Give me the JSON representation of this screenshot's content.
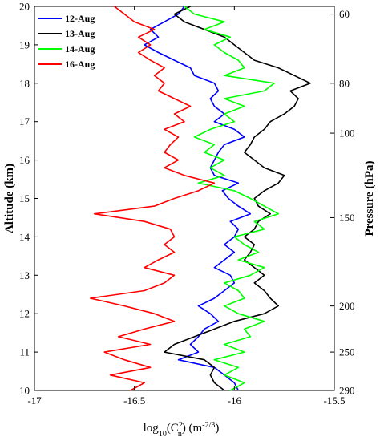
{
  "chart_data": {
    "type": "line",
    "orientation": "vertical-profile",
    "xlabel_base": "log",
    "xlabel_sub1": "10",
    "xlabel_mid": "(C",
    "xlabel_sup": "2",
    "xlabel_sub2": "n",
    "xlabel_tail": ") (m",
    "xlabel_exp": "-2/3",
    "xlabel_end": ")",
    "ylabel": "Altitude (km)",
    "y2label": "Pressure (hPa)",
    "xlim": [
      -17,
      -15.5
    ],
    "ylim": [
      10,
      20
    ],
    "x_ticks": [
      -17,
      -16.5,
      -16,
      -15.5
    ],
    "y_ticks": [
      10,
      11,
      12,
      13,
      14,
      15,
      16,
      17,
      18,
      19,
      20
    ],
    "y2_ticks": [
      {
        "label": "60",
        "altitude": 19.8
      },
      {
        "label": "80",
        "altitude": 18.0
      },
      {
        "label": "100",
        "altitude": 16.7
      },
      {
        "label": "150",
        "altitude": 14.5
      },
      {
        "label": "200",
        "altitude": 12.2
      },
      {
        "label": "250",
        "altitude": 11.0
      },
      {
        "label": "290",
        "altitude": 10.0
      }
    ],
    "legend_position": "top-left",
    "series": [
      {
        "name": "12-Aug",
        "color": "#0000ff",
        "points": [
          [
            -15.98,
            10.0
          ],
          [
            -16.0,
            10.2
          ],
          [
            -16.05,
            10.4
          ],
          [
            -16.1,
            10.6
          ],
          [
            -16.28,
            10.8
          ],
          [
            -16.18,
            11.0
          ],
          [
            -16.22,
            11.2
          ],
          [
            -16.18,
            11.4
          ],
          [
            -16.15,
            11.6
          ],
          [
            -16.08,
            11.8
          ],
          [
            -16.12,
            12.0
          ],
          [
            -16.18,
            12.2
          ],
          [
            -16.1,
            12.4
          ],
          [
            -16.05,
            12.6
          ],
          [
            -16.0,
            12.8
          ],
          [
            -16.02,
            13.0
          ],
          [
            -16.1,
            13.2
          ],
          [
            -16.05,
            13.4
          ],
          [
            -16.0,
            13.6
          ],
          [
            -16.05,
            13.8
          ],
          [
            -16.0,
            14.0
          ],
          [
            -15.98,
            14.2
          ],
          [
            -16.02,
            14.4
          ],
          [
            -15.92,
            14.6
          ],
          [
            -15.98,
            14.8
          ],
          [
            -16.03,
            15.0
          ],
          [
            -16.06,
            15.2
          ],
          [
            -15.98,
            15.4
          ],
          [
            -16.1,
            15.6
          ],
          [
            -16.12,
            15.8
          ],
          [
            -16.1,
            16.0
          ],
          [
            -16.08,
            16.2
          ],
          [
            -16.05,
            16.4
          ],
          [
            -15.95,
            16.6
          ],
          [
            -16.0,
            16.8
          ],
          [
            -16.1,
            17.0
          ],
          [
            -16.05,
            17.2
          ],
          [
            -16.1,
            17.4
          ],
          [
            -16.12,
            17.6
          ],
          [
            -16.08,
            17.8
          ],
          [
            -16.1,
            18.0
          ],
          [
            -16.2,
            18.2
          ],
          [
            -16.22,
            18.4
          ],
          [
            -16.3,
            18.6
          ],
          [
            -16.38,
            18.8
          ],
          [
            -16.45,
            19.0
          ],
          [
            -16.38,
            19.2
          ],
          [
            -16.42,
            19.4
          ],
          [
            -16.35,
            19.6
          ],
          [
            -16.28,
            19.8
          ],
          [
            -16.25,
            20.0
          ]
        ]
      },
      {
        "name": "13-Aug",
        "color": "#000000",
        "points": [
          [
            -16.05,
            10.0
          ],
          [
            -16.1,
            10.2
          ],
          [
            -16.12,
            10.4
          ],
          [
            -16.1,
            10.6
          ],
          [
            -16.15,
            10.8
          ],
          [
            -16.35,
            11.0
          ],
          [
            -16.3,
            11.2
          ],
          [
            -16.2,
            11.4
          ],
          [
            -16.1,
            11.6
          ],
          [
            -16.0,
            11.8
          ],
          [
            -15.85,
            12.0
          ],
          [
            -15.78,
            12.2
          ],
          [
            -15.82,
            12.4
          ],
          [
            -15.85,
            12.6
          ],
          [
            -15.9,
            12.8
          ],
          [
            -15.85,
            13.0
          ],
          [
            -15.9,
            13.2
          ],
          [
            -15.95,
            13.4
          ],
          [
            -15.92,
            13.6
          ],
          [
            -15.9,
            13.8
          ],
          [
            -15.95,
            14.0
          ],
          [
            -15.9,
            14.2
          ],
          [
            -15.88,
            14.4
          ],
          [
            -15.82,
            14.6
          ],
          [
            -15.88,
            14.8
          ],
          [
            -15.9,
            15.0
          ],
          [
            -15.85,
            15.2
          ],
          [
            -15.78,
            15.4
          ],
          [
            -15.75,
            15.6
          ],
          [
            -15.85,
            15.8
          ],
          [
            -15.9,
            16.0
          ],
          [
            -15.95,
            16.2
          ],
          [
            -15.92,
            16.4
          ],
          [
            -15.9,
            16.6
          ],
          [
            -15.85,
            16.8
          ],
          [
            -15.82,
            17.0
          ],
          [
            -15.75,
            17.2
          ],
          [
            -15.7,
            17.4
          ],
          [
            -15.68,
            17.6
          ],
          [
            -15.72,
            17.8
          ],
          [
            -15.62,
            18.0
          ],
          [
            -15.7,
            18.2
          ],
          [
            -15.78,
            18.4
          ],
          [
            -15.9,
            18.6
          ],
          [
            -15.95,
            18.8
          ],
          [
            -16.0,
            19.0
          ],
          [
            -16.05,
            19.2
          ],
          [
            -16.15,
            19.4
          ],
          [
            -16.25,
            19.6
          ],
          [
            -16.3,
            19.8
          ],
          [
            -16.22,
            20.0
          ]
        ]
      },
      {
        "name": "14-Aug",
        "color": "#00ff00",
        "points": [
          [
            -16.02,
            10.0
          ],
          [
            -15.95,
            10.2
          ],
          [
            -16.05,
            10.4
          ],
          [
            -15.98,
            10.6
          ],
          [
            -16.1,
            10.8
          ],
          [
            -15.95,
            11.0
          ],
          [
            -16.05,
            11.2
          ],
          [
            -15.92,
            11.4
          ],
          [
            -15.95,
            11.6
          ],
          [
            -15.85,
            11.8
          ],
          [
            -15.98,
            12.0
          ],
          [
            -16.05,
            12.2
          ],
          [
            -15.95,
            12.4
          ],
          [
            -15.98,
            12.6
          ],
          [
            -16.05,
            12.8
          ],
          [
            -15.92,
            13.0
          ],
          [
            -15.85,
            13.2
          ],
          [
            -15.98,
            13.4
          ],
          [
            -15.88,
            13.6
          ],
          [
            -15.95,
            13.8
          ],
          [
            -16.0,
            14.0
          ],
          [
            -15.85,
            14.2
          ],
          [
            -15.9,
            14.4
          ],
          [
            -15.78,
            14.6
          ],
          [
            -15.85,
            14.8
          ],
          [
            -15.92,
            15.0
          ],
          [
            -16.0,
            15.2
          ],
          [
            -16.18,
            15.4
          ],
          [
            -16.05,
            15.6
          ],
          [
            -16.12,
            15.8
          ],
          [
            -16.05,
            16.0
          ],
          [
            -16.15,
            16.2
          ],
          [
            -16.1,
            16.4
          ],
          [
            -16.2,
            16.6
          ],
          [
            -16.12,
            16.8
          ],
          [
            -16.0,
            17.0
          ],
          [
            -16.05,
            17.2
          ],
          [
            -15.95,
            17.4
          ],
          [
            -16.05,
            17.6
          ],
          [
            -15.85,
            17.8
          ],
          [
            -15.8,
            18.0
          ],
          [
            -16.05,
            18.2
          ],
          [
            -15.95,
            18.4
          ],
          [
            -15.98,
            18.6
          ],
          [
            -16.05,
            18.8
          ],
          [
            -16.1,
            19.0
          ],
          [
            -16.02,
            19.2
          ],
          [
            -16.15,
            19.4
          ],
          [
            -16.05,
            19.6
          ],
          [
            -16.2,
            19.8
          ],
          [
            -16.25,
            20.0
          ]
        ]
      },
      {
        "name": "16-Aug",
        "color": "#ff0000",
        "points": [
          [
            -16.52,
            10.0
          ],
          [
            -16.45,
            10.2
          ],
          [
            -16.62,
            10.4
          ],
          [
            -16.42,
            10.6
          ],
          [
            -16.55,
            10.8
          ],
          [
            -16.65,
            11.0
          ],
          [
            -16.42,
            11.2
          ],
          [
            -16.58,
            11.4
          ],
          [
            -16.45,
            11.6
          ],
          [
            -16.3,
            11.8
          ],
          [
            -16.4,
            12.0
          ],
          [
            -16.55,
            12.2
          ],
          [
            -16.72,
            12.4
          ],
          [
            -16.45,
            12.6
          ],
          [
            -16.35,
            12.8
          ],
          [
            -16.3,
            13.0
          ],
          [
            -16.45,
            13.2
          ],
          [
            -16.38,
            13.4
          ],
          [
            -16.3,
            13.6
          ],
          [
            -16.35,
            13.8
          ],
          [
            -16.3,
            14.0
          ],
          [
            -16.32,
            14.2
          ],
          [
            -16.45,
            14.4
          ],
          [
            -16.7,
            14.6
          ],
          [
            -16.4,
            14.8
          ],
          [
            -16.3,
            15.0
          ],
          [
            -16.18,
            15.2
          ],
          [
            -16.1,
            15.4
          ],
          [
            -16.25,
            15.6
          ],
          [
            -16.35,
            15.8
          ],
          [
            -16.28,
            16.0
          ],
          [
            -16.35,
            16.2
          ],
          [
            -16.32,
            16.4
          ],
          [
            -16.28,
            16.6
          ],
          [
            -16.35,
            16.8
          ],
          [
            -16.25,
            17.0
          ],
          [
            -16.3,
            17.2
          ],
          [
            -16.22,
            17.4
          ],
          [
            -16.3,
            17.6
          ],
          [
            -16.38,
            17.8
          ],
          [
            -16.35,
            18.0
          ],
          [
            -16.4,
            18.2
          ],
          [
            -16.35,
            18.4
          ],
          [
            -16.42,
            18.6
          ],
          [
            -16.48,
            18.8
          ],
          [
            -16.42,
            19.0
          ],
          [
            -16.48,
            19.2
          ],
          [
            -16.4,
            19.4
          ],
          [
            -16.5,
            19.6
          ],
          [
            -16.55,
            19.8
          ],
          [
            -16.6,
            20.0
          ]
        ]
      }
    ]
  }
}
